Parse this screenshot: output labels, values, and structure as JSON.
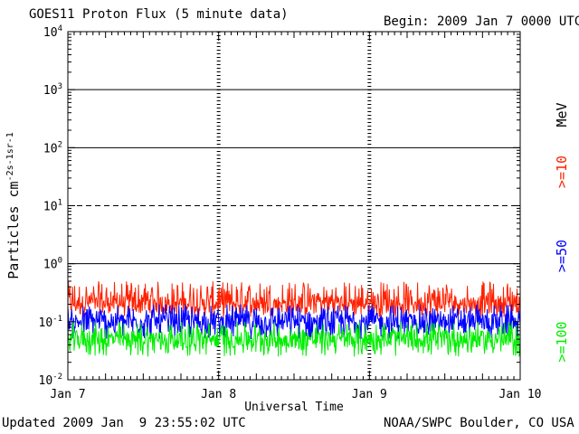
{
  "title": "GOES11 Proton Flux (5 minute data)",
  "begin_label": "Begin: 2009 Jan 7 0000 UTC",
  "updated_label": "Updated 2009 Jan  9 23:55:02 UTC",
  "credit_label": "NOAA/SWPC Boulder, CO USA",
  "colors": {
    "axis": "#000000",
    "ge10": "#ff2000",
    "ge50": "#0000ff",
    "ge100": "#00ee00"
  },
  "chart_data": {
    "type": "line",
    "xlabel": "Universal Time",
    "ylabel_base": "Particles cm",
    "ylabel_units": "-2s-1sr-1",
    "x_ticks": [
      "Jan 7",
      "Jan 8",
      "Jan 9",
      "Jan 10"
    ],
    "xlim_days": [
      0,
      3
    ],
    "y_scale": "log",
    "ylim": [
      0.01,
      10000
    ],
    "y_ticks": [
      {
        "base": "10",
        "exp": "-2"
      },
      {
        "base": "10",
        "exp": "-1"
      },
      {
        "base": "10",
        "exp": "0"
      },
      {
        "base": "10",
        "exp": "1"
      },
      {
        "base": "10",
        "exp": "2"
      },
      {
        "base": "10",
        "exp": "3"
      },
      {
        "base": "10",
        "exp": "4"
      }
    ],
    "reference_lines": [
      {
        "y": 1,
        "style": "solid"
      },
      {
        "y": 10,
        "style": "dashed"
      },
      {
        "y": 100,
        "style": "solid"
      },
      {
        "y": 1000,
        "style": "solid"
      }
    ],
    "energy_unit": "MeV",
    "series": [
      {
        "name": ">=10",
        "color": "#ff2000",
        "typical": 0.2,
        "range": [
          0.12,
          0.5
        ]
      },
      {
        "name": ">=50",
        "color": "#0000ff",
        "typical": 0.1,
        "range": [
          0.05,
          0.2
        ]
      },
      {
        "name": ">=100",
        "color": "#00ee00",
        "typical": 0.05,
        "range": [
          0.025,
          0.1
        ]
      }
    ]
  }
}
